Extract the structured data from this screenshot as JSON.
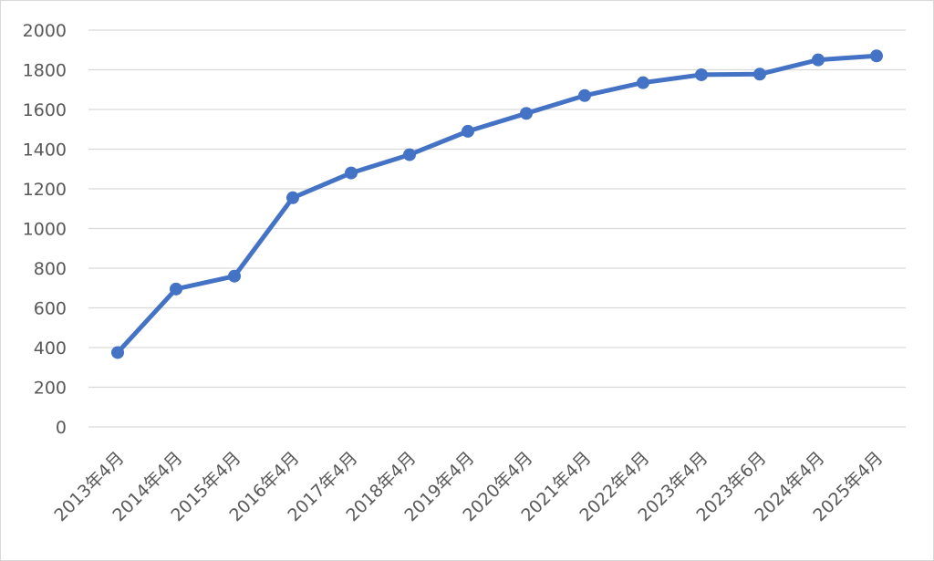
{
  "chart_data": {
    "type": "line",
    "title": "",
    "xlabel": "",
    "ylabel": "",
    "ylim": [
      0,
      2000
    ],
    "yticks": [
      0,
      200,
      400,
      600,
      800,
      1000,
      1200,
      1400,
      1600,
      1800,
      2000
    ],
    "grid": true,
    "legend": "none",
    "categories": [
      "2013年4月",
      "2014年4月",
      "2015年4月",
      "2016年4月",
      "2017年4月",
      "2018年4月",
      "2019年4月",
      "2020年4月",
      "2021年4月",
      "2022年4月",
      "2023年4月",
      "2023年6月",
      "2024年4月",
      "2025年4月"
    ],
    "series": [
      {
        "color": "#4472c4",
        "values": [
          375,
          695,
          760,
          1155,
          1280,
          1372,
          1490,
          1580,
          1670,
          1735,
          1775,
          1778,
          1850,
          1870
        ]
      }
    ]
  }
}
